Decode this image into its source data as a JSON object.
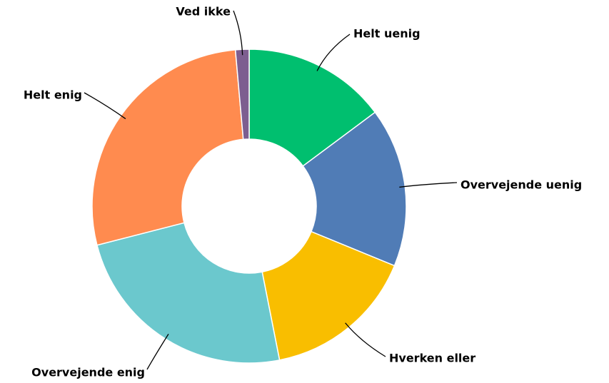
{
  "chart_data": {
    "type": "donut",
    "categories": [
      "Helt uenig",
      "Overvejende uenig",
      "Hverken eller",
      "Overvejende enig",
      "Helt enig",
      "Ved ikke"
    ],
    "values": [
      14.8,
      16.4,
      15.7,
      24.1,
      27.6,
      1.4
    ],
    "colors": [
      "#00bf6f",
      "#507cb6",
      "#f9be00",
      "#6bc8cd",
      "#ff8b4f",
      "#7d5e90"
    ]
  }
}
